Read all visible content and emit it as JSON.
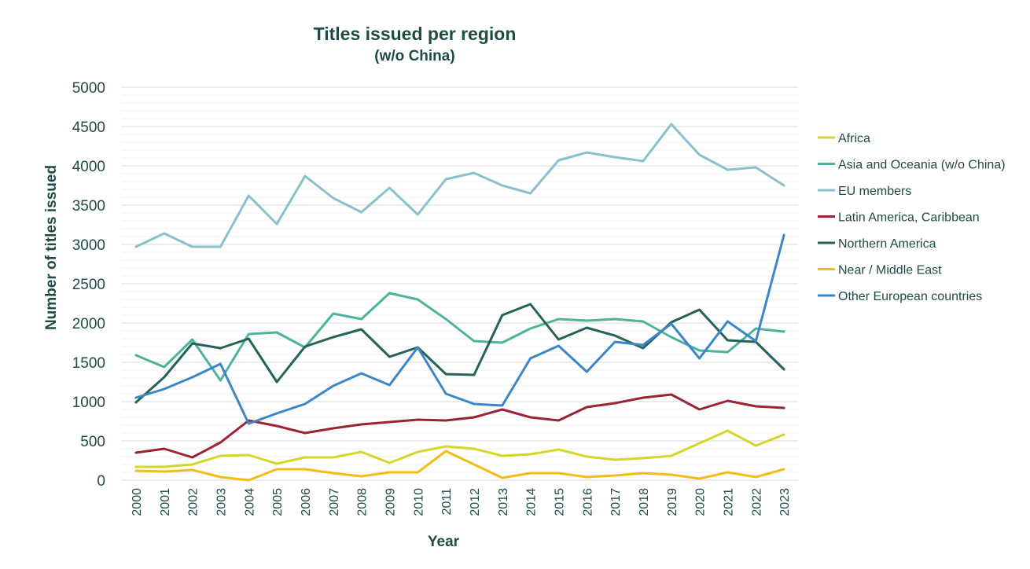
{
  "chart_data": {
    "type": "line",
    "title": "Titles issued per region",
    "subtitle": "(w/o China)",
    "xlabel": "Year",
    "ylabel": "Number of titles issued",
    "ylim": [
      0,
      5000
    ],
    "yticks": [
      0,
      500,
      1000,
      1500,
      2000,
      2500,
      3000,
      3500,
      4000,
      4500,
      5000
    ],
    "grid": true,
    "legend_position": "right",
    "categories": [
      "2000",
      "2001",
      "2002",
      "2003",
      "2004",
      "2005",
      "2006",
      "2007",
      "2008",
      "2009",
      "2010",
      "2011",
      "2012",
      "2013",
      "2014",
      "2015",
      "2016",
      "2017",
      "2018",
      "2019",
      "2020",
      "2021",
      "2022",
      "2023"
    ],
    "series": [
      {
        "name": "Africa",
        "color": "#d4d62a",
        "values": [
          170,
          170,
          200,
          310,
          320,
          210,
          290,
          290,
          360,
          220,
          360,
          430,
          400,
          310,
          330,
          390,
          300,
          260,
          280,
          310,
          470,
          630,
          440,
          580
        ]
      },
      {
        "name": "Asia and Oceania (w/o China)",
        "color": "#4db39b",
        "values": [
          1590,
          1440,
          1790,
          1270,
          1860,
          1880,
          1690,
          2120,
          2050,
          2380,
          2300,
          2050,
          1770,
          1750,
          1930,
          2050,
          2030,
          2050,
          2020,
          1820,
          1650,
          1630,
          1930,
          1890
        ]
      },
      {
        "name": "EU members",
        "color": "#88c0cb",
        "values": [
          2970,
          3140,
          2970,
          2970,
          3620,
          3260,
          3870,
          3590,
          3410,
          3720,
          3380,
          3830,
          3910,
          3750,
          3650,
          4070,
          4170,
          4110,
          4060,
          4530,
          4140,
          3950,
          3980,
          3750
        ]
      },
      {
        "name": "Latin America, Caribbean",
        "color": "#9b2335",
        "values": [
          350,
          400,
          290,
          480,
          760,
          690,
          600,
          660,
          710,
          740,
          770,
          760,
          800,
          900,
          800,
          760,
          930,
          980,
          1050,
          1090,
          900,
          1010,
          940,
          920
        ]
      },
      {
        "name": "Northern America",
        "color": "#24635a",
        "values": [
          990,
          1310,
          1740,
          1680,
          1800,
          1250,
          1700,
          1820,
          1920,
          1570,
          1690,
          1350,
          1340,
          2100,
          2240,
          1790,
          1940,
          1840,
          1680,
          2010,
          2170,
          1780,
          1760,
          1410
        ]
      },
      {
        "name": "Near / Middle East",
        "color": "#f4bc16",
        "values": [
          120,
          110,
          130,
          40,
          0,
          140,
          140,
          90,
          50,
          100,
          100,
          370,
          200,
          30,
          90,
          90,
          40,
          60,
          90,
          70,
          20,
          100,
          40,
          140
        ]
      },
      {
        "name": "Other European countries",
        "color": "#3c86c8",
        "values": [
          1050,
          1160,
          1310,
          1480,
          720,
          850,
          970,
          1200,
          1360,
          1210,
          1690,
          1100,
          970,
          950,
          1550,
          1710,
          1380,
          1760,
          1720,
          1990,
          1550,
          2020,
          1770,
          3120
        ]
      }
    ]
  }
}
